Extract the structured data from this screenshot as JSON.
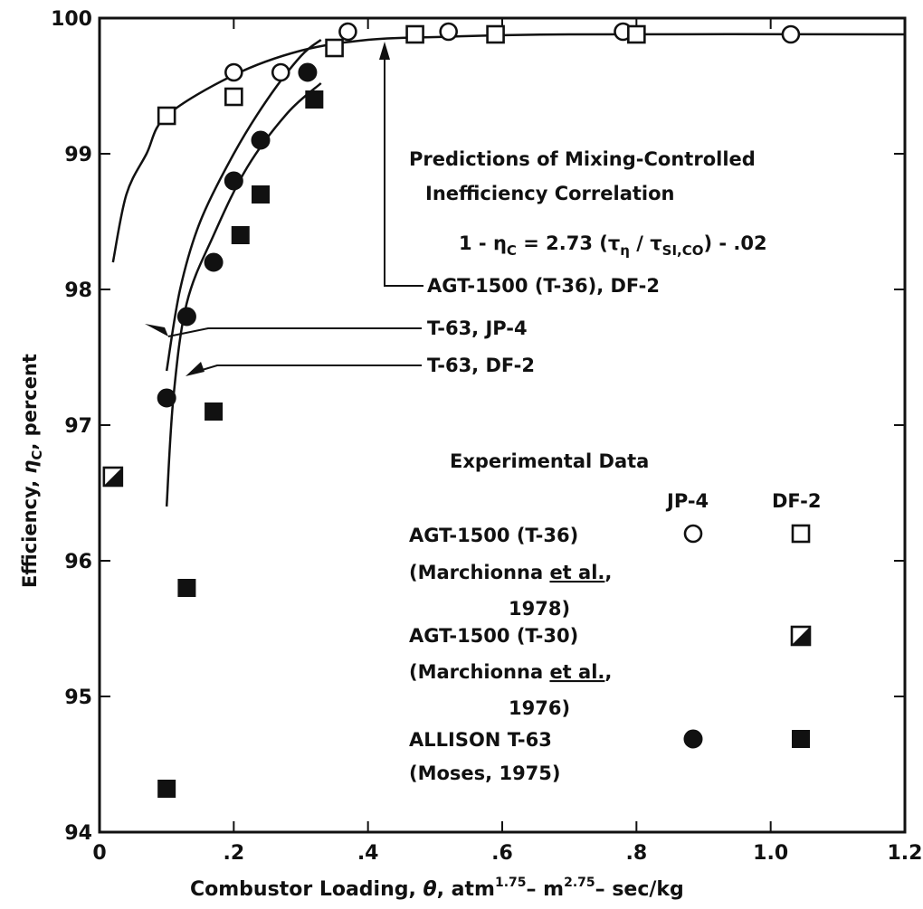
{
  "chart_data": {
    "type": "scatter",
    "xlabel_parts": [
      "Combustor Loading, ",
      "θ",
      ", atm",
      "1.75",
      "– m",
      "2.75",
      "– sec/kg"
    ],
    "ylabel_parts": [
      "Efficiency, ",
      "η",
      "C",
      ", percent"
    ],
    "xlim": [
      0,
      1.2
    ],
    "ylim": [
      94,
      100
    ],
    "x_ticks": [
      0,
      0.2,
      0.4,
      0.6,
      0.8,
      1.0,
      1.2
    ],
    "x_tick_labels": [
      "0",
      ".2",
      ".4",
      ".6",
      ".8",
      "1.0",
      "1.2"
    ],
    "y_ticks": [
      94,
      95,
      96,
      97,
      98,
      99,
      100
    ],
    "y_tick_labels": [
      "94",
      "95",
      "96",
      "97",
      "98",
      "99",
      "100"
    ],
    "grid": false,
    "annotations": {
      "prediction_title_1": "Predictions of Mixing-Controlled",
      "prediction_title_2": "Inefficiency Correlation",
      "formula_parts": [
        "1 - η",
        "C",
        " = 2.73 (τ",
        "η",
        " / τ",
        "SI,CO",
        ") - .02"
      ],
      "curve_label_agt": "AGT-1500 (T-36), DF-2",
      "curve_label_t63_jp4": "T-63, JP-4",
      "curve_label_t63_df2": "T-63, DF-2"
    },
    "legend": {
      "title": "Experimental Data",
      "col_jp4": "JP-4",
      "col_df2": "DF-2",
      "entries": [
        {
          "line1": "AGT-1500 (T-36)",
          "line2": "(Marchionna ",
          "etal": "et al.",
          "line2_end": ",",
          "line3": "1978)",
          "jp4_marker": "open-circle",
          "df2_marker": "open-square"
        },
        {
          "line1": "AGT-1500 (T-30)",
          "line2": "(Marchionna ",
          "etal": "et al.",
          "line2_end": ",",
          "line3": "1976)",
          "jp4_marker": "",
          "df2_marker": "half-square"
        },
        {
          "line1": "ALLISON T-63",
          "line2": "(Moses, 1975)",
          "etal": "",
          "line2_end": "",
          "line3": "",
          "jp4_marker": "filled-circle",
          "df2_marker": "filled-square"
        }
      ]
    },
    "series": [
      {
        "marker": "open-circle",
        "x": [
          0.2,
          0.27,
          0.37,
          0.52,
          0.78,
          1.03
        ],
        "y": [
          99.6,
          99.6,
          99.9,
          99.9,
          99.9,
          99.88
        ]
      },
      {
        "marker": "open-square",
        "x": [
          0.1,
          0.2,
          0.35,
          0.47,
          0.59,
          0.8
        ],
        "y": [
          99.28,
          99.42,
          99.78,
          99.88,
          99.88,
          99.88
        ]
      },
      {
        "marker": "half-square",
        "x": [
          0.02
        ],
        "y": [
          96.62
        ]
      },
      {
        "marker": "filled-circle",
        "x": [
          0.1,
          0.13,
          0.17,
          0.2,
          0.24,
          0.31
        ],
        "y": [
          97.2,
          97.8,
          98.2,
          98.8,
          99.1,
          99.6
        ]
      },
      {
        "marker": "filled-square",
        "x": [
          0.1,
          0.13,
          0.17,
          0.21,
          0.24,
          0.32
        ],
        "y": [
          94.32,
          95.8,
          97.1,
          98.4,
          98.7,
          99.4
        ]
      }
    ],
    "curves": [
      {
        "name_ref": "curve_label_agt",
        "x": [
          0.02,
          0.04,
          0.07,
          0.1,
          0.2,
          0.3,
          0.4,
          0.5,
          0.7,
          1.2
        ],
        "y": [
          98.2,
          98.7,
          99.0,
          99.28,
          99.58,
          99.76,
          99.84,
          99.86,
          99.88,
          99.88
        ]
      },
      {
        "name_ref": "curve_label_t63_jp4",
        "x": [
          0.1,
          0.12,
          0.15,
          0.2,
          0.25,
          0.3,
          0.33
        ],
        "y": [
          97.4,
          98.0,
          98.5,
          99.0,
          99.4,
          99.72,
          99.84
        ]
      },
      {
        "name_ref": "curve_label_t63_df2",
        "x": [
          0.1,
          0.11,
          0.13,
          0.17,
          0.22,
          0.28,
          0.33
        ],
        "y": [
          96.4,
          97.2,
          97.9,
          98.4,
          98.9,
          99.3,
          99.52
        ]
      }
    ]
  }
}
